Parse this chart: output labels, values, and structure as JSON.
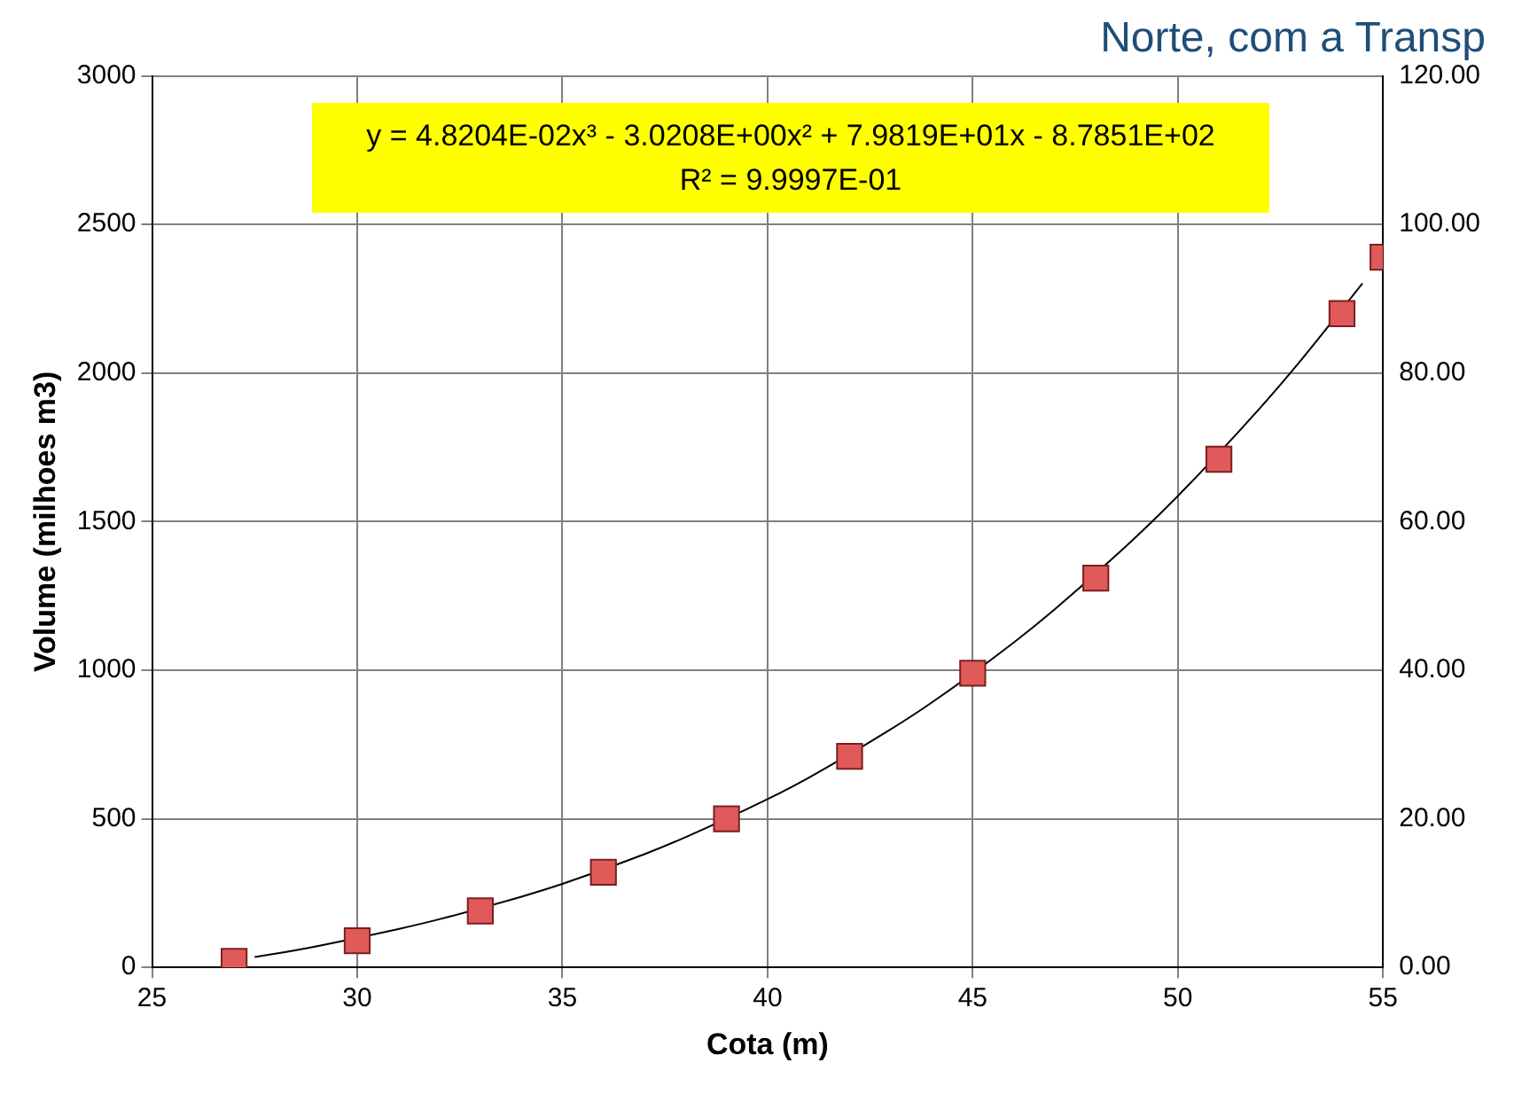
{
  "chart_data": {
    "type": "scatter",
    "title": "Norte, com a Transp",
    "xlabel": "Cota (m)",
    "ylabel": "Volume (milhoes m3)",
    "annotations": [
      "y = 4.8204E-02x³ - 3.0208E+00x² + 7.9819E+01x - 8.7851E+02",
      "R² = 9.9997E-01"
    ],
    "series": [
      {
        "type": "scatter",
        "color": "#e05a5a",
        "marker": "square",
        "x": [
          27,
          30,
          33,
          36,
          39,
          42,
          45,
          48,
          51,
          54,
          55
        ],
        "values": [
          20,
          90,
          190,
          320,
          500,
          710,
          990,
          1310,
          1710,
          2200,
          2390
        ]
      },
      {
        "type": "line",
        "color": "#000000",
        "marker": "none",
        "x": [
          27.5,
          28,
          29,
          31,
          32,
          34,
          35,
          37,
          38,
          40,
          41,
          43,
          44,
          46,
          47,
          49,
          50,
          52,
          53,
          54.5
        ],
        "values": [
          35,
          46,
          71,
          129,
          162,
          238,
          281,
          381,
          438,
          566,
          638,
          801,
          891,
          1093,
          1205,
          1451,
          1586,
          1882,
          2043,
          2302
        ]
      }
    ],
    "xlim": [
      25,
      55
    ],
    "xticks": [
      25,
      30,
      35,
      40,
      45,
      50,
      55
    ],
    "ylim": [
      0,
      3000
    ],
    "yticks": [
      0,
      500,
      1000,
      1500,
      2000,
      2500,
      3000
    ],
    "y2lim": [
      0,
      120
    ],
    "y2ticks": [
      {
        "value": 0,
        "label": "0.00"
      },
      {
        "value": 20,
        "label": "20.00"
      },
      {
        "value": 40,
        "label": "40.00"
      },
      {
        "value": 60,
        "label": "60.00"
      },
      {
        "value": 80,
        "label": "80.00"
      },
      {
        "value": 100,
        "label": "100.00"
      },
      {
        "value": 120,
        "label": "120.00"
      }
    ],
    "grid": true,
    "legend": false
  }
}
